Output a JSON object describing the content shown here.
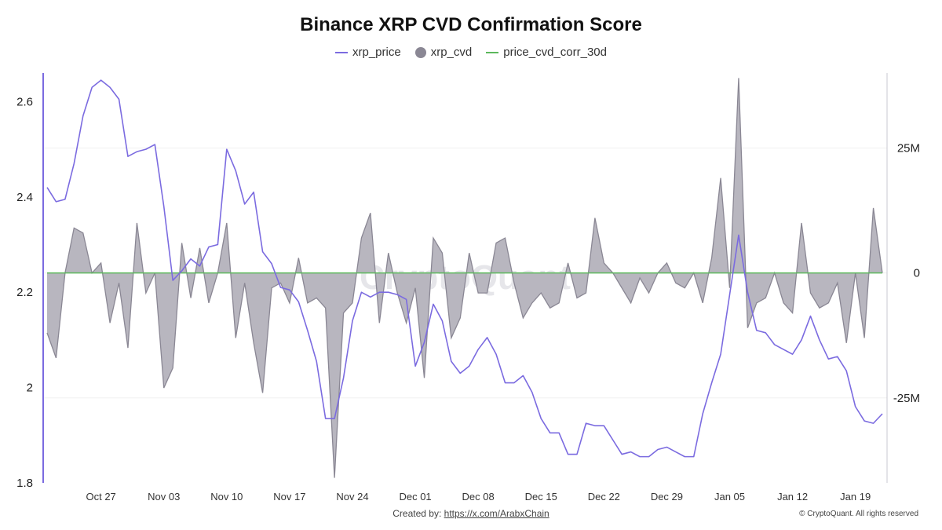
{
  "chart_data": {
    "type": "line",
    "title": "Binance XRP CVD Confirmation Score",
    "watermark": "CryptoQuant",
    "footer": {
      "created_by_label": "Created by:",
      "created_by_link": "https://x.com/ArabxChain",
      "copyright": "© CryptoQuant. All rights reserved"
    },
    "left_axis": {
      "ticks": [
        1.8,
        2,
        2.2,
        2.4,
        2.6
      ],
      "tick_labels": [
        "1.8",
        "2",
        "2.2",
        "2.4",
        "2.6"
      ],
      "range": [
        1.8,
        2.66
      ]
    },
    "right_axis": {
      "ticks": [
        25000000,
        0,
        -25000000
      ],
      "tick_labels": [
        "25M",
        "0",
        "-25M"
      ],
      "range": [
        -42000000,
        40000000
      ]
    },
    "x_axis": {
      "tick_labels": [
        "Oct 27",
        "Nov 03",
        "Nov 10",
        "Nov 17",
        "Nov 24",
        "Dec 01",
        "Dec 08",
        "Dec 15",
        "Dec 22",
        "Dec 29",
        "Jan 05",
        "Jan 12",
        "Jan 19"
      ],
      "tick_index": [
        6,
        13,
        20,
        27,
        34,
        41,
        48,
        55,
        62,
        69,
        76,
        83,
        90
      ]
    },
    "series": [
      {
        "name": "xrp_price",
        "color": "#7b6be0",
        "axis": "left",
        "values": [
          2.42,
          2.39,
          2.395,
          2.47,
          2.57,
          2.63,
          2.645,
          2.63,
          2.605,
          2.485,
          2.495,
          2.5,
          2.51,
          2.38,
          2.225,
          2.245,
          2.27,
          2.255,
          2.295,
          2.3,
          2.5,
          2.455,
          2.385,
          2.41,
          2.285,
          2.26,
          2.21,
          2.205,
          2.18,
          2.12,
          2.055,
          1.935,
          1.935,
          2.02,
          2.14,
          2.2,
          2.19,
          2.2,
          2.2,
          2.195,
          2.185,
          2.045,
          2.095,
          2.175,
          2.14,
          2.055,
          2.03,
          2.045,
          2.08,
          2.105,
          2.07,
          2.01,
          2.01,
          2.025,
          1.99,
          1.935,
          1.905,
          1.905,
          1.86,
          1.86,
          1.925,
          1.92,
          1.92,
          1.89,
          1.86,
          1.865,
          1.855,
          1.855,
          1.87,
          1.875,
          1.865,
          1.855,
          1.855,
          1.945,
          2.01,
          2.07,
          2.195,
          2.32,
          2.2,
          2.12,
          2.115,
          2.09,
          2.08,
          2.07,
          2.1,
          2.15,
          2.1,
          2.06,
          2.065,
          2.035,
          1.96,
          1.93,
          1.925,
          1.945
        ]
      },
      {
        "name": "xrp_cvd",
        "color": "#8a8794",
        "fill": "#b8b6bf",
        "axis": "right",
        "values": [
          -12000000,
          -17000000,
          0,
          9000000,
          8000000,
          0,
          2000000,
          -10000000,
          -2000000,
          -15000000,
          10000000,
          -4000000,
          0,
          -23000000,
          -19000000,
          6000000,
          -5000000,
          5000000,
          -6000000,
          0,
          10000000,
          -13000000,
          -2000000,
          -14000000,
          -24000000,
          -3000000,
          -2000000,
          -6000000,
          3000000,
          -6000000,
          -5000000,
          -7000000,
          -41000000,
          -8000000,
          -6000000,
          7000000,
          12000000,
          -10000000,
          4000000,
          -4000000,
          -10000000,
          -3000000,
          -21000000,
          7000000,
          4000000,
          -13000000,
          -9000000,
          4000000,
          -4000000,
          -4000000,
          6000000,
          7000000,
          -2000000,
          -9000000,
          -6000000,
          -4000000,
          -7000000,
          -6000000,
          2000000,
          -5000000,
          -4000000,
          11000000,
          2000000,
          0,
          -3000000,
          -6000000,
          -1000000,
          -4000000,
          0,
          2000000,
          -2000000,
          -3000000,
          0,
          -6000000,
          3000000,
          19000000,
          -3000000,
          39000000,
          -11000000,
          -6000000,
          -5000000,
          0,
          -6000000,
          -8000000,
          10000000,
          -4000000,
          -7000000,
          -6000000,
          -2000000,
          -14000000,
          0,
          -13000000,
          13000000,
          0
        ]
      },
      {
        "name": "price_cvd_corr_30d",
        "color": "#5cb85c",
        "axis": "right",
        "values": [
          0
        ]
      }
    ]
  }
}
